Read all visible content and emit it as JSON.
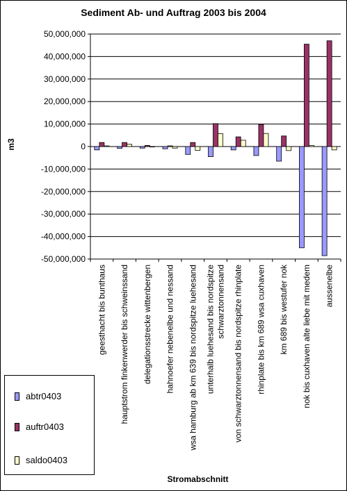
{
  "chart_data": {
    "type": "bar",
    "title": "Sediment Ab- und Auftrag 2003 bis 2004",
    "xlabel": "Stromabschnitt",
    "ylabel": "m3",
    "ylim": [
      -50000000,
      50000000
    ],
    "ytick_step": 10000000,
    "yticks": [
      "-50,000,000",
      "-40,000,000",
      "-30,000,000",
      "-20,000,000",
      "-10,000,000",
      "0",
      "10,000,000",
      "20,000,000",
      "30,000,000",
      "40,000,000",
      "50,000,000"
    ],
    "grid": true,
    "legend_position": "bottom-left",
    "categories": [
      [
        "geesthacht bis bunthaus"
      ],
      [
        "hauptstrom finkenwerder bis schweinssand"
      ],
      [
        "delegationsstrecke wittenbergen"
      ],
      [
        "hahnoefer nebenelbe und nessand"
      ],
      [
        "wsa hamburg ab km 639 bis nordspitze luehesand"
      ],
      [
        "unterhalb luehesand bis nordspitze",
        "schwarztonnensand"
      ],
      [
        "von schwarztonnensand bis nordspitze rhinplate"
      ],
      [
        "rhinplate bis km 689 wsa cuxhaven"
      ],
      [
        "km 689 bis westufer nok"
      ],
      [
        "nok bis cuxhaven alte liebe mit medem"
      ],
      [
        "aussenelbe"
      ]
    ],
    "series": [
      {
        "name": "abtr0403",
        "color": "#9999ff",
        "values": [
          -1500000,
          -800000,
          -700000,
          -1000000,
          -3500000,
          -4500000,
          -1500000,
          -4000000,
          -6500000,
          -45000000,
          -48500000
        ]
      },
      {
        "name": "auftr0403",
        "color": "#993366",
        "values": [
          1800000,
          1800000,
          500000,
          300000,
          1800000,
          10200000,
          4300000,
          9800000,
          4700000,
          45500000,
          47000000
        ]
      },
      {
        "name": "saldo0403",
        "color": "#ffffcc",
        "values": [
          300000,
          1000000,
          -200000,
          -700000,
          -1700000,
          5700000,
          2800000,
          5800000,
          -1800000,
          500000,
          -1500000
        ]
      }
    ]
  }
}
